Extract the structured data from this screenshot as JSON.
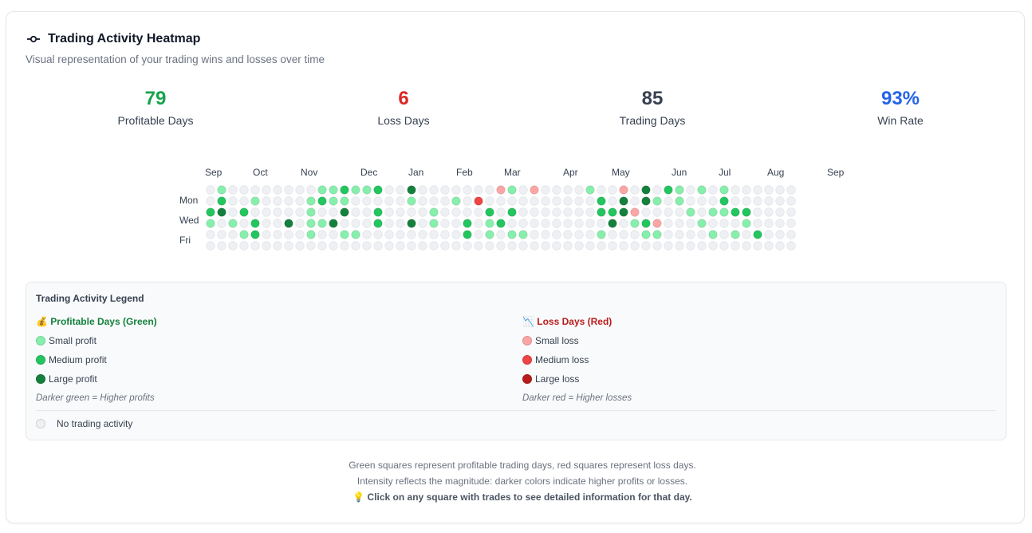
{
  "header": {
    "title": "Trading Activity Heatmap",
    "subtitle": "Visual representation of your trading wins and losses over time"
  },
  "stats": [
    {
      "value": "79",
      "label": "Profitable Days",
      "color": "#16a34a"
    },
    {
      "value": "6",
      "label": "Loss Days",
      "color": "#dc2626"
    },
    {
      "value": "85",
      "label": "Trading Days",
      "color": "#374151"
    },
    {
      "value": "93%",
      "label": "Win Rate",
      "color": "#2563eb"
    }
  ],
  "heatmap": {
    "months": [
      "Sep",
      "Oct",
      "Nov",
      "Dec",
      "Jan",
      "Feb",
      "Mar",
      "Apr",
      "May",
      "Jun",
      "Jul",
      "Aug",
      "Sep"
    ],
    "day_labels": [
      "Mon",
      "Wed",
      "Fri"
    ],
    "levels": {
      "0": "#eef0f3",
      "1": "#86efac",
      "2": "#22c55e",
      "3": "#15803d",
      "-1": "#fca5a5",
      "-2": "#ef4444",
      "-3": "#b91c1c"
    },
    "weeks": 53,
    "rows": [
      [
        0,
        1,
        0,
        0,
        0,
        0,
        0,
        0,
        0,
        0,
        1,
        1,
        2,
        1,
        1,
        2,
        0,
        0,
        3,
        0,
        0,
        0,
        0,
        0,
        0,
        0,
        -1,
        1,
        0,
        -1,
        0,
        0,
        0,
        0,
        1,
        0,
        0,
        -1,
        0,
        3,
        0,
        2,
        1,
        0,
        1,
        0,
        1,
        0,
        0,
        0,
        0,
        0,
        0
      ],
      [
        0,
        2,
        0,
        0,
        1,
        0,
        0,
        0,
        0,
        1,
        2,
        1,
        1,
        0,
        0,
        0,
        0,
        0,
        1,
        0,
        0,
        0,
        1,
        0,
        -2,
        0,
        0,
        0,
        0,
        0,
        0,
        0,
        0,
        0,
        0,
        2,
        0,
        3,
        0,
        3,
        1,
        0,
        1,
        0,
        0,
        0,
        2,
        0,
        0,
        0,
        0,
        0,
        0
      ],
      [
        2,
        3,
        0,
        2,
        0,
        0,
        0,
        0,
        0,
        1,
        0,
        0,
        3,
        0,
        0,
        2,
        0,
        0,
        0,
        0,
        1,
        0,
        0,
        0,
        0,
        2,
        0,
        2,
        0,
        0,
        0,
        0,
        0,
        0,
        0,
        2,
        2,
        3,
        -1,
        0,
        0,
        0,
        0,
        1,
        0,
        1,
        1,
        2,
        2,
        0,
        0,
        0,
        0
      ],
      [
        1,
        0,
        1,
        0,
        2,
        0,
        0,
        3,
        0,
        1,
        1,
        3,
        0,
        0,
        0,
        2,
        0,
        0,
        3,
        0,
        1,
        0,
        0,
        2,
        0,
        1,
        2,
        0,
        0,
        0,
        0,
        0,
        0,
        0,
        0,
        0,
        3,
        0,
        1,
        2,
        -1,
        0,
        0,
        0,
        1,
        0,
        0,
        0,
        1,
        0,
        0,
        0,
        0
      ],
      [
        0,
        0,
        0,
        1,
        2,
        0,
        0,
        0,
        0,
        1,
        0,
        0,
        1,
        1,
        0,
        0,
        0,
        0,
        0,
        0,
        0,
        0,
        0,
        2,
        0,
        1,
        0,
        1,
        1,
        0,
        0,
        0,
        0,
        0,
        0,
        1,
        0,
        0,
        0,
        1,
        1,
        0,
        0,
        0,
        0,
        1,
        0,
        1,
        0,
        2,
        0,
        0,
        0
      ],
      [
        0,
        0,
        0,
        0,
        0,
        0,
        0,
        0,
        0,
        0,
        0,
        0,
        0,
        0,
        0,
        0,
        0,
        0,
        0,
        0,
        0,
        0,
        0,
        0,
        0,
        0,
        0,
        0,
        0,
        0,
        0,
        0,
        0,
        0,
        0,
        0,
        0,
        0,
        0,
        0,
        0,
        0,
        0,
        0,
        0,
        0,
        0,
        0,
        0,
        0,
        0,
        0,
        0
      ]
    ]
  },
  "legend": {
    "title": "Trading Activity Legend",
    "profit": {
      "heading": "💰 Profitable Days (Green)",
      "heading_color": "#15803d",
      "items": [
        {
          "label": "Small profit",
          "color": "#86efac"
        },
        {
          "label": "Medium profit",
          "color": "#22c55e"
        },
        {
          "label": "Large profit",
          "color": "#15803d"
        }
      ],
      "note": "Darker green = Higher profits"
    },
    "loss": {
      "heading": "📉 Loss Days (Red)",
      "heading_color": "#b91c1c",
      "items": [
        {
          "label": "Small loss",
          "color": "#fca5a5"
        },
        {
          "label": "Medium loss",
          "color": "#ef4444"
        },
        {
          "label": "Large loss",
          "color": "#b91c1c"
        }
      ],
      "note": "Darker red = Higher losses"
    },
    "none": {
      "label": "No trading activity",
      "color": "#eef0f3"
    }
  },
  "footer": {
    "line1": "Green squares represent profitable trading days, red squares represent loss days.",
    "line2": "Intensity reflects the magnitude: darker colors indicate higher profits or losses.",
    "line3": "💡 Click on any square with trades to see detailed information for that day."
  }
}
